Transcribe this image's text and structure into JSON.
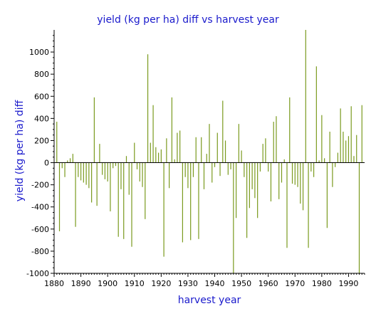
{
  "chart_data": {
    "type": "bar",
    "title": "yield (kg per ha) diff vs harvest year",
    "xlabel": "harvest year",
    "ylabel": "yield (kg per ha) diff",
    "xlim": [
      1880,
      1996
    ],
    "ylim": [
      -1000,
      1200
    ],
    "xticks": [
      1880,
      1890,
      1900,
      1910,
      1920,
      1930,
      1940,
      1950,
      1960,
      1970,
      1980,
      1990
    ],
    "yticks": [
      -1000,
      -800,
      -600,
      -400,
      -200,
      0,
      200,
      400,
      600,
      800,
      1000
    ],
    "grid": false,
    "legend": "none",
    "bar_color": "#7a9a1e",
    "series": [
      {
        "x": [
          1881,
          1882,
          1883,
          1884,
          1885,
          1886,
          1887,
          1888,
          1889,
          1890,
          1891,
          1892,
          1893,
          1894,
          1895,
          1896,
          1897,
          1898,
          1899,
          1900,
          1901,
          1902,
          1903,
          1904,
          1905,
          1906,
          1907,
          1908,
          1909,
          1910,
          1911,
          1912,
          1913,
          1914,
          1915,
          1916,
          1917,
          1918,
          1919,
          1920,
          1921,
          1922,
          1923,
          1924,
          1925,
          1926,
          1927,
          1928,
          1929,
          1930,
          1931,
          1932,
          1933,
          1934,
          1935,
          1936,
          1937,
          1938,
          1939,
          1940,
          1941,
          1942,
          1943,
          1944,
          1945,
          1946,
          1947,
          1948,
          1949,
          1950,
          1951,
          1952,
          1953,
          1954,
          1955,
          1956,
          1957,
          1958,
          1959,
          1960,
          1961,
          1962,
          1963,
          1964,
          1965,
          1966,
          1967,
          1968,
          1969,
          1970,
          1971,
          1972,
          1973,
          1974,
          1975,
          1976,
          1977,
          1978,
          1979,
          1980,
          1981,
          1982,
          1983,
          1984,
          1985,
          1986,
          1987,
          1988,
          1989,
          1990,
          1991,
          1992,
          1993,
          1994,
          1995
        ],
        "values": [
          370,
          -620,
          -50,
          -130,
          20,
          40,
          80,
          -580,
          -130,
          -160,
          -180,
          -200,
          -230,
          -360,
          590,
          -390,
          170,
          -110,
          -150,
          -170,
          -440,
          -50,
          -30,
          -670,
          -240,
          -690,
          60,
          -290,
          -760,
          180,
          -60,
          -170,
          -220,
          -510,
          980,
          180,
          520,
          140,
          90,
          120,
          -850,
          220,
          -230,
          590,
          30,
          270,
          290,
          -720,
          -130,
          -230,
          -700,
          -130,
          230,
          -690,
          230,
          -240,
          80,
          350,
          -180,
          -40,
          270,
          -120,
          560,
          200,
          -110,
          -60,
          -1000,
          -500,
          350,
          110,
          -130,
          -680,
          -410,
          -240,
          -320,
          -500,
          -80,
          170,
          220,
          -80,
          -350,
          370,
          420,
          -330,
          -180,
          30,
          -770,
          590,
          -190,
          -200,
          -220,
          -370,
          -430,
          1200,
          -770,
          -80,
          -130,
          870,
          20,
          430,
          40,
          -590,
          280,
          -220,
          -40,
          90,
          490,
          280,
          200,
          240,
          510,
          60,
          250,
          -1000,
          520
        ]
      }
    ]
  }
}
